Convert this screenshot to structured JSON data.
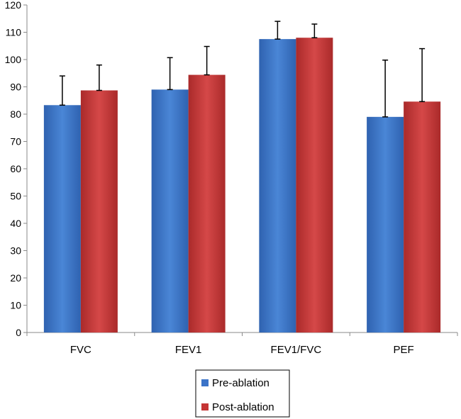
{
  "chart_data": {
    "type": "bar",
    "categories": [
      "FVC",
      "FEV1",
      "FEV1/FVC",
      "PEF"
    ],
    "series": [
      {
        "name": "Pre-ablation",
        "values": [
          83.3,
          89,
          107.5,
          79
        ],
        "error_upper": [
          94,
          100.7,
          114,
          99.8
        ],
        "color": "#3b73c8"
      },
      {
        "name": "Post-ablation",
        "values": [
          88.7,
          94.4,
          108,
          84.6
        ],
        "error_upper": [
          98,
          104.8,
          113,
          104
        ],
        "color": "#c53535"
      }
    ],
    "ylim": [
      0,
      120
    ],
    "yticks": [
      0,
      10,
      20,
      30,
      40,
      50,
      60,
      70,
      80,
      90,
      100,
      110,
      120
    ],
    "grid": false,
    "legend_position": "bottom-center"
  }
}
